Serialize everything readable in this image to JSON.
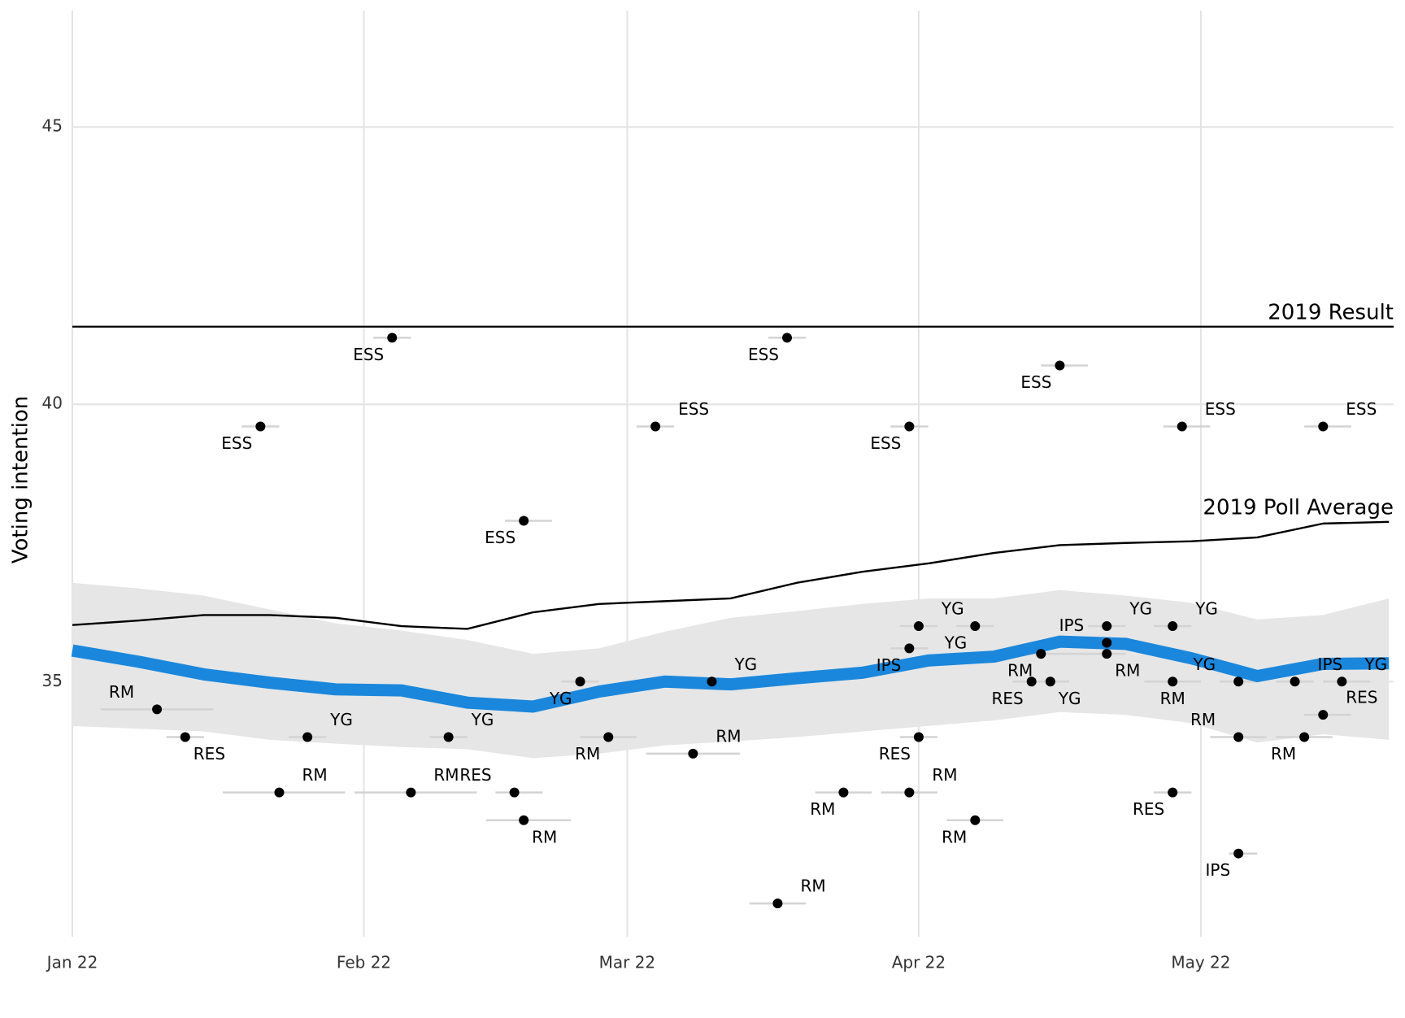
{
  "chart_data": {
    "type": "line",
    "ylabel": "Voting intention",
    "xlim": [
      0,
      140.5
    ],
    "xticks": [
      {
        "value": 0,
        "label": "Jan 22"
      },
      {
        "value": 31,
        "label": "Feb 22"
      },
      {
        "value": 59,
        "label": "Mar 22"
      },
      {
        "value": 90,
        "label": "Apr 22"
      },
      {
        "value": 120,
        "label": "May 22"
      }
    ],
    "ylim": [
      30.4,
      47.1
    ],
    "yticks": [
      35,
      40,
      45
    ],
    "grid": true,
    "x": [
      0,
      7,
      14,
      21,
      28,
      35,
      42,
      49,
      56,
      63,
      70,
      77,
      84,
      91,
      98,
      105,
      112,
      119,
      126,
      133,
      140
    ],
    "series": [
      {
        "color": "#1a87dc",
        "band_color": "#e6e6e6",
        "values": [
          35.56,
          35.36,
          35.13,
          34.98,
          34.86,
          34.84,
          34.62,
          34.55,
          34.82,
          35.0,
          34.95,
          35.06,
          35.16,
          35.38,
          35.45,
          35.72,
          35.68,
          35.42,
          35.1,
          35.32,
          35.33
        ],
        "upper": [
          36.78,
          36.68,
          36.55,
          36.3,
          36.05,
          35.92,
          35.75,
          35.5,
          35.6,
          35.9,
          36.15,
          36.27,
          36.4,
          36.5,
          36.5,
          36.65,
          36.55,
          36.42,
          36.12,
          36.2,
          36.5
        ],
        "lower": [
          34.2,
          34.15,
          34.1,
          33.95,
          33.88,
          33.82,
          33.78,
          33.62,
          33.7,
          33.85,
          33.92,
          34.0,
          34.1,
          34.2,
          34.3,
          34.45,
          34.4,
          34.25,
          33.9,
          34.05,
          33.95
        ]
      },
      {
        "color": "#000000",
        "label": "2019 Poll Average",
        "values": [
          36.02,
          36.1,
          36.2,
          36.2,
          36.15,
          36.0,
          35.95,
          36.25,
          36.4,
          36.45,
          36.5,
          36.78,
          36.98,
          37.13,
          37.32,
          37.46,
          37.5,
          37.53,
          37.6,
          37.85,
          37.88
        ]
      }
    ],
    "reference_lines": [
      {
        "value": 41.4,
        "label": "2019 Result",
        "color": "#000000"
      }
    ],
    "polls": {
      "color": "#000000",
      "range_color": "#d3d3d3",
      "labels": [
        "RM",
        "RES",
        "ESS",
        "RM",
        "YG",
        "ESS",
        "RM",
        "YG",
        "RES",
        "ESS",
        "RM",
        "YG",
        "RM",
        "ESS",
        "RM",
        "YG",
        "RM",
        "ESS",
        "RM",
        "ESS",
        "IPS",
        "RM",
        "YG",
        "RES",
        "YG",
        "RM",
        "RES",
        "RM",
        "YG",
        "ESS",
        "YG",
        "IPS",
        "RM",
        "RES",
        "RM",
        "YG",
        "ESS",
        "IPS",
        "YG",
        "RM",
        "IPS",
        "RM",
        "RES",
        "ESS",
        "YG"
      ],
      "x": [
        9,
        12,
        20,
        22,
        25,
        34,
        36,
        40,
        47,
        48,
        48,
        54,
        57,
        62,
        66,
        68,
        75,
        76,
        82,
        89,
        89,
        89,
        90,
        90,
        96,
        96,
        102,
        103,
        104,
        105,
        110,
        110,
        110,
        117,
        117,
        117,
        118,
        124,
        124,
        124,
        130,
        131,
        133,
        133,
        135
      ],
      "x_start": [
        3,
        10,
        18,
        16,
        23,
        32,
        30,
        38,
        45,
        46,
        44,
        52,
        54,
        60,
        61,
        66,
        72,
        74,
        79,
        87,
        87,
        86,
        88,
        88,
        94,
        93,
        100,
        100,
        102,
        103,
        108,
        106,
        106,
        115,
        114,
        115,
        116,
        123,
        122,
        121,
        128,
        128,
        131,
        131,
        133
      ],
      "x_end": [
        15,
        14,
        22,
        29,
        27,
        36,
        43,
        42,
        50,
        51,
        53,
        56,
        60,
        64,
        71,
        70,
        78,
        78,
        85,
        91,
        91,
        92,
        92,
        92,
        98,
        99,
        104,
        106,
        106,
        108,
        112,
        112,
        112,
        119,
        120,
        119,
        121,
        126,
        126,
        127,
        132,
        134,
        136,
        136,
        138
      ],
      "values": [
        34.5,
        34.0,
        39.6,
        33.0,
        34.0,
        41.2,
        33.0,
        34.0,
        33.0,
        37.9,
        32.5,
        35.0,
        34.0,
        39.6,
        33.7,
        35.0,
        31.0,
        41.2,
        33.0,
        39.6,
        35.6,
        33.0,
        36.0,
        34.0,
        36.0,
        32.5,
        35.0,
        35.5,
        35.0,
        40.7,
        36.0,
        35.7,
        35.5,
        33.0,
        35.0,
        36.0,
        39.6,
        31.9,
        35.0,
        34.0,
        35.0,
        34.0,
        34.4,
        39.6,
        35.0
      ]
    }
  }
}
